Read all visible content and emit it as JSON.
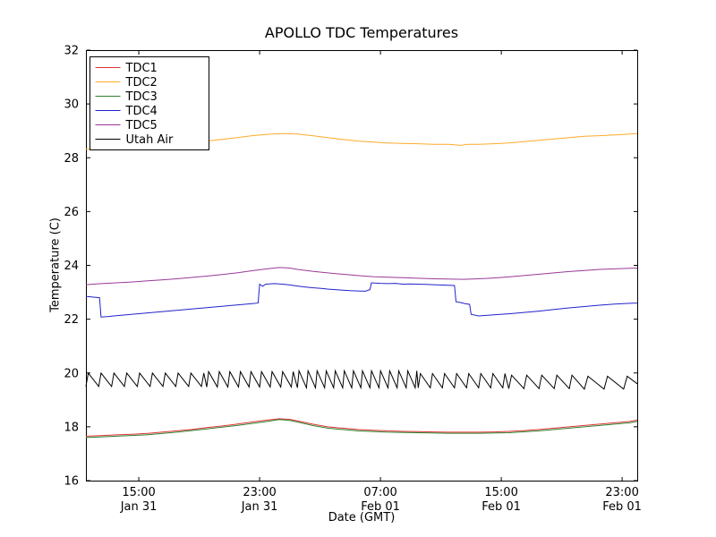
{
  "figure": {
    "title": "APOLLO TDC Temperatures",
    "xlabel": "Date (GMT)",
    "ylabel": "Temperature (C)"
  },
  "chart_data": {
    "type": "line",
    "title": "APOLLO TDC Temperatures",
    "xlabel": "Date (GMT)",
    "ylabel": "Temperature (C)",
    "x_unit": "hours from ~11:30 Jan 31 (GMT)",
    "xlim": [
      0,
      36.5
    ],
    "ylim": [
      16,
      32
    ],
    "yticks": [
      16,
      18,
      20,
      22,
      24,
      26,
      28,
      30,
      32
    ],
    "xticks": [
      {
        "t": 3.5,
        "time": "15:00",
        "date": "Jan 31"
      },
      {
        "t": 11.5,
        "time": "23:00",
        "date": "Jan 31"
      },
      {
        "t": 19.5,
        "time": "07:00",
        "date": "Feb 01"
      },
      {
        "t": 27.5,
        "time": "15:00",
        "date": "Feb 01"
      },
      {
        "t": 35.5,
        "time": "23:00",
        "date": "Feb 01"
      }
    ],
    "frame_color": "#000000",
    "background": "#ffffff",
    "legend": {
      "position": "upper left"
    },
    "series": [
      {
        "name": "TDC1",
        "color": "#dd3333",
        "points": [
          [
            0,
            17.65
          ],
          [
            1,
            17.67
          ],
          [
            2,
            17.7
          ],
          [
            3,
            17.72
          ],
          [
            4,
            17.75
          ],
          [
            5,
            17.8
          ],
          [
            6,
            17.85
          ],
          [
            7,
            17.9
          ],
          [
            8,
            17.97
          ],
          [
            9,
            18.03
          ],
          [
            10,
            18.1
          ],
          [
            11,
            18.18
          ],
          [
            12,
            18.25
          ],
          [
            12.8,
            18.3
          ],
          [
            13.5,
            18.28
          ],
          [
            14,
            18.22
          ],
          [
            15,
            18.1
          ],
          [
            16,
            18.0
          ],
          [
            17,
            17.95
          ],
          [
            18,
            17.9
          ],
          [
            19,
            17.87
          ],
          [
            20,
            17.85
          ],
          [
            21,
            17.83
          ],
          [
            22,
            17.82
          ],
          [
            23,
            17.81
          ],
          [
            24,
            17.8
          ],
          [
            25,
            17.8
          ],
          [
            26,
            17.8
          ],
          [
            27,
            17.81
          ],
          [
            28,
            17.83
          ],
          [
            29,
            17.86
          ],
          [
            30,
            17.9
          ],
          [
            31,
            17.95
          ],
          [
            32,
            18.0
          ],
          [
            33,
            18.05
          ],
          [
            34,
            18.1
          ],
          [
            35,
            18.15
          ],
          [
            36,
            18.2
          ],
          [
            36.5,
            18.25
          ]
        ]
      },
      {
        "name": "TDC2",
        "color": "#ffaa2b",
        "points": [
          [
            0,
            28.32
          ],
          [
            1,
            28.36
          ],
          [
            2,
            28.4
          ],
          [
            3,
            28.43
          ],
          [
            4,
            28.46
          ],
          [
            5,
            28.5
          ],
          [
            6,
            28.53
          ],
          [
            7,
            28.57
          ],
          [
            8,
            28.62
          ],
          [
            9,
            28.68
          ],
          [
            10,
            28.75
          ],
          [
            11,
            28.82
          ],
          [
            12,
            28.87
          ],
          [
            13,
            28.9
          ],
          [
            14,
            28.88
          ],
          [
            15,
            28.82
          ],
          [
            16,
            28.75
          ],
          [
            17,
            28.68
          ],
          [
            18,
            28.62
          ],
          [
            19,
            28.58
          ],
          [
            20,
            28.55
          ],
          [
            21,
            28.53
          ],
          [
            22,
            28.52
          ],
          [
            23,
            28.5
          ],
          [
            24,
            28.5
          ],
          [
            24.8,
            28.46
          ],
          [
            25.3,
            28.5
          ],
          [
            26,
            28.5
          ],
          [
            27,
            28.52
          ],
          [
            28,
            28.55
          ],
          [
            29,
            28.6
          ],
          [
            30,
            28.65
          ],
          [
            31,
            28.7
          ],
          [
            32,
            28.75
          ],
          [
            33,
            28.8
          ],
          [
            34,
            28.82
          ],
          [
            35,
            28.85
          ],
          [
            36,
            28.88
          ],
          [
            36.5,
            28.9
          ]
        ]
      },
      {
        "name": "TDC3",
        "color": "#2d7f2d",
        "points": [
          [
            0,
            17.6
          ],
          [
            2,
            17.65
          ],
          [
            4,
            17.7
          ],
          [
            6,
            17.8
          ],
          [
            8,
            17.92
          ],
          [
            10,
            18.05
          ],
          [
            12,
            18.2
          ],
          [
            12.8,
            18.27
          ],
          [
            13.5,
            18.24
          ],
          [
            14,
            18.18
          ],
          [
            15,
            18.05
          ],
          [
            16,
            17.95
          ],
          [
            17,
            17.9
          ],
          [
            18,
            17.85
          ],
          [
            20,
            17.8
          ],
          [
            22,
            17.78
          ],
          [
            24,
            17.76
          ],
          [
            26,
            17.76
          ],
          [
            28,
            17.78
          ],
          [
            30,
            17.85
          ],
          [
            32,
            17.95
          ],
          [
            34,
            18.05
          ],
          [
            36,
            18.15
          ],
          [
            36.5,
            18.2
          ]
        ]
      },
      {
        "name": "TDC4",
        "color": "#2222cc",
        "points": [
          [
            0,
            22.85
          ],
          [
            0.5,
            22.82
          ],
          [
            0.9,
            22.8
          ],
          [
            1.0,
            22.08
          ],
          [
            1.5,
            22.1
          ],
          [
            2,
            22.13
          ],
          [
            3,
            22.18
          ],
          [
            4,
            22.23
          ],
          [
            5,
            22.28
          ],
          [
            6,
            22.33
          ],
          [
            7,
            22.38
          ],
          [
            8,
            22.43
          ],
          [
            9,
            22.48
          ],
          [
            10,
            22.53
          ],
          [
            11,
            22.58
          ],
          [
            11.4,
            22.6
          ],
          [
            11.5,
            23.3
          ],
          [
            11.7,
            23.22
          ],
          [
            11.9,
            23.3
          ],
          [
            12.5,
            23.32
          ],
          [
            13,
            23.3
          ],
          [
            13.5,
            23.27
          ],
          [
            14,
            23.23
          ],
          [
            14.5,
            23.2
          ],
          [
            15,
            23.17
          ],
          [
            15.5,
            23.15
          ],
          [
            16,
            23.12
          ],
          [
            16.5,
            23.1
          ],
          [
            17,
            23.08
          ],
          [
            17.5,
            23.06
          ],
          [
            18,
            23.05
          ],
          [
            18.5,
            23.04
          ],
          [
            18.8,
            23.1
          ],
          [
            18.9,
            23.35
          ],
          [
            19.5,
            23.33
          ],
          [
            20,
            23.32
          ],
          [
            20.5,
            23.33
          ],
          [
            21,
            23.3
          ],
          [
            21.5,
            23.31
          ],
          [
            22,
            23.3
          ],
          [
            22.5,
            23.29
          ],
          [
            23,
            23.28
          ],
          [
            23.5,
            23.27
          ],
          [
            24,
            23.26
          ],
          [
            24.4,
            23.25
          ],
          [
            24.5,
            22.65
          ],
          [
            24.8,
            22.62
          ],
          [
            25.1,
            22.58
          ],
          [
            25.4,
            22.55
          ],
          [
            25.5,
            22.18
          ],
          [
            26,
            22.12
          ],
          [
            26.5,
            22.14
          ],
          [
            27,
            22.16
          ],
          [
            28,
            22.2
          ],
          [
            29,
            22.25
          ],
          [
            30,
            22.3
          ],
          [
            31,
            22.36
          ],
          [
            32,
            22.42
          ],
          [
            33,
            22.47
          ],
          [
            34,
            22.52
          ],
          [
            35,
            22.56
          ],
          [
            36,
            22.59
          ],
          [
            36.5,
            22.6
          ]
        ]
      },
      {
        "name": "TDC5",
        "color": "#993a99",
        "points": [
          [
            0,
            23.28
          ],
          [
            1,
            23.32
          ],
          [
            2,
            23.35
          ],
          [
            3,
            23.38
          ],
          [
            4,
            23.42
          ],
          [
            5,
            23.46
          ],
          [
            6,
            23.5
          ],
          [
            7,
            23.55
          ],
          [
            8,
            23.6
          ],
          [
            9,
            23.66
          ],
          [
            10,
            23.72
          ],
          [
            11,
            23.8
          ],
          [
            12,
            23.87
          ],
          [
            12.8,
            23.92
          ],
          [
            13.5,
            23.9
          ],
          [
            14,
            23.85
          ],
          [
            15,
            23.78
          ],
          [
            16,
            23.72
          ],
          [
            17,
            23.67
          ],
          [
            18,
            23.62
          ],
          [
            19,
            23.58
          ],
          [
            20,
            23.56
          ],
          [
            21,
            23.54
          ],
          [
            22,
            23.52
          ],
          [
            23,
            23.5
          ],
          [
            24,
            23.49
          ],
          [
            25,
            23.48
          ],
          [
            26,
            23.5
          ],
          [
            27,
            23.53
          ],
          [
            28,
            23.57
          ],
          [
            29,
            23.62
          ],
          [
            30,
            23.67
          ],
          [
            31,
            23.72
          ],
          [
            32,
            23.77
          ],
          [
            33,
            23.81
          ],
          [
            34,
            23.85
          ],
          [
            35,
            23.87
          ],
          [
            36,
            23.89
          ],
          [
            36.5,
            23.9
          ]
        ]
      },
      {
        "name": "Utah Air",
        "color": "#000000",
        "generator": {
          "kind": "sawtooth",
          "attack_fraction": 0.18,
          "end_point": [
            36.5,
            19.6
          ],
          "segments": [
            {
              "t0": 0,
              "t1": 8,
              "period": 0.85,
              "min": 19.5,
              "max": 20.0
            },
            {
              "t0": 8,
              "t1": 14,
              "period": 0.7,
              "min": 19.48,
              "max": 20.05
            },
            {
              "t0": 14,
              "t1": 22,
              "period": 0.6,
              "min": 19.45,
              "max": 20.08
            },
            {
              "t0": 22,
              "t1": 28,
              "period": 0.8,
              "min": 19.45,
              "max": 19.98
            },
            {
              "t0": 28,
              "t1": 33,
              "period": 1.0,
              "min": 19.42,
              "max": 19.92
            },
            {
              "t0": 33,
              "t1": 36.5,
              "period": 1.3,
              "min": 19.4,
              "max": 19.88
            }
          ]
        }
      }
    ]
  }
}
